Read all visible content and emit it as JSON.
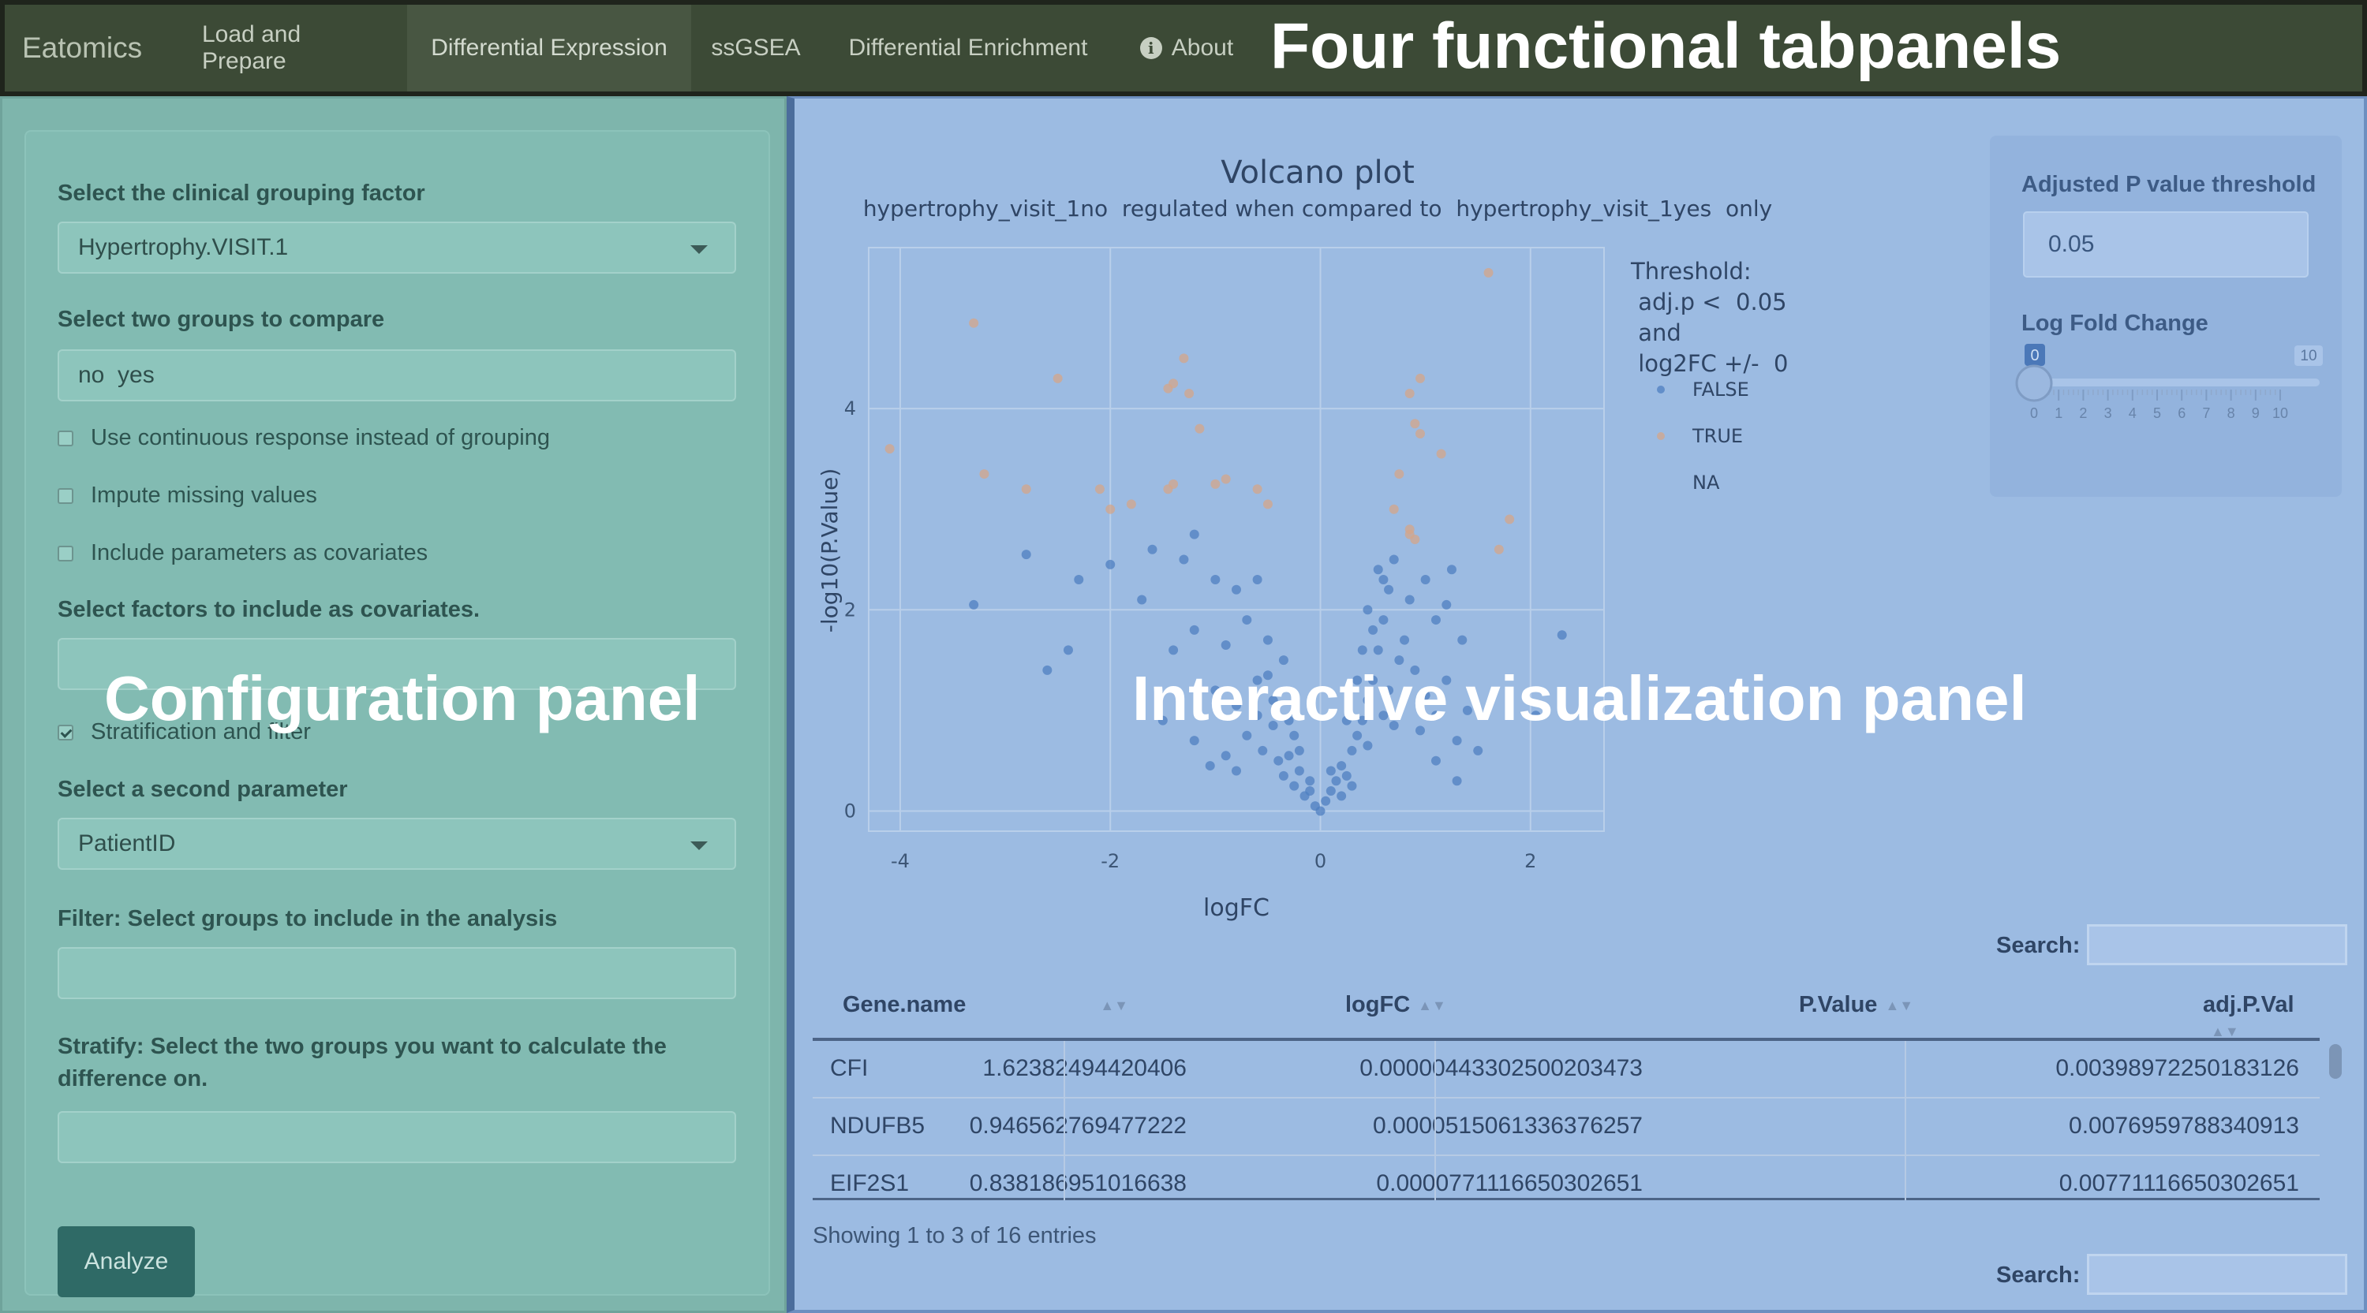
{
  "navbar": {
    "brand": "Eatomics",
    "tabs": [
      {
        "label": "Load and Prepare"
      },
      {
        "label": "Differential Expression"
      },
      {
        "label": "ssGSEA"
      },
      {
        "label": "Differential Enrichment"
      },
      {
        "label": "About"
      }
    ],
    "active_tab": "Differential Expression"
  },
  "annotations": {
    "tabpanels": "Four functional tabpanels",
    "config": "Configuration panel",
    "viz": "Interactive visualization panel"
  },
  "config": {
    "grouping_label": "Select the clinical grouping factor",
    "grouping_value": "Hypertrophy.VISIT.1",
    "groups_label": "Select two groups to compare",
    "groups_value": "no  yes",
    "cb_continuous": "Use continuous response instead of grouping",
    "cb_impute": "Impute missing values",
    "cb_covariates": "Include parameters as covariates",
    "covariates_label": "Select factors to include as covariates.",
    "covariates_value": "",
    "cb_stratification": "Stratification and filter",
    "second_param_label": "Select a second parameter",
    "second_param_value": "PatientID",
    "filter_label": "Filter: Select groups to include in the analysis",
    "filter_value": "",
    "stratify_label_1": "Stratify: Select the two groups you want to calculate the",
    "stratify_label_2": "difference on.",
    "stratify_value": "",
    "analyze_button": "Analyze",
    "checkbox_state": {
      "continuous": false,
      "impute": false,
      "covariates": false,
      "stratification": true
    }
  },
  "side": {
    "pval_label": "Adjusted P value threshold",
    "pval_value": "0.05",
    "lfc_label": "Log Fold Change",
    "slider_value": "0",
    "slider_max": "10",
    "slider_ticks": [
      "0",
      "1",
      "2",
      "3",
      "4",
      "5",
      "6",
      "7",
      "8",
      "9",
      "10"
    ]
  },
  "chart_data": {
    "type": "scatter",
    "title": "Volcano plot",
    "subtitle": "hypertrophy_visit_1no  regulated when compared to  hypertrophy_visit_1yes  only",
    "xlabel": "logFC",
    "ylabel": "-log10(P.Value)",
    "xlim": [
      -4.3,
      2.7
    ],
    "ylim": [
      -0.2,
      5.6
    ],
    "xticks": [
      "-4",
      "-2",
      "0",
      "2"
    ],
    "xtick_values": [
      -4,
      -2,
      0,
      2
    ],
    "yticks": [
      "0",
      "2",
      "4"
    ],
    "ytick_values": [
      0,
      2,
      4
    ],
    "legend": {
      "title": [
        "Threshold:",
        " adj.p <  0.05",
        " and",
        " log2FC +/-  0"
      ],
      "entries": [
        "FALSE",
        "TRUE",
        "NA"
      ],
      "placement": "right"
    },
    "colors": {
      "FALSE": "#4f7fc0",
      "TRUE": "#d4a68a",
      "NA": "#9cbbe2"
    },
    "series": [
      {
        "name": "TRUE",
        "points": [
          [
            -4.1,
            3.6
          ],
          [
            -3.3,
            4.85
          ],
          [
            -3.2,
            3.35
          ],
          [
            -2.8,
            3.2
          ],
          [
            -2.5,
            4.3
          ],
          [
            -2.1,
            3.2
          ],
          [
            -2.0,
            3.0
          ],
          [
            -1.8,
            3.05
          ],
          [
            -1.45,
            4.2
          ],
          [
            -1.4,
            4.25
          ],
          [
            -1.3,
            4.5
          ],
          [
            -1.25,
            4.15
          ],
          [
            -1.15,
            3.8
          ],
          [
            -1.45,
            3.2
          ],
          [
            -1.4,
            3.25
          ],
          [
            -1.0,
            3.25
          ],
          [
            -0.9,
            3.3
          ],
          [
            -0.6,
            3.2
          ],
          [
            -0.5,
            3.05
          ],
          [
            1.6,
            5.35
          ],
          [
            0.95,
            4.3
          ],
          [
            0.85,
            4.15
          ],
          [
            0.9,
            3.85
          ],
          [
            0.95,
            3.75
          ],
          [
            1.15,
            3.55
          ],
          [
            0.75,
            3.35
          ],
          [
            0.7,
            3.0
          ],
          [
            0.85,
            2.8
          ],
          [
            0.9,
            2.7
          ],
          [
            0.85,
            2.75
          ],
          [
            1.8,
            2.9
          ],
          [
            1.7,
            2.6
          ]
        ]
      },
      {
        "name": "FALSE",
        "points": [
          [
            -3.3,
            2.05
          ],
          [
            -2.6,
            1.4
          ],
          [
            -2.4,
            1.6
          ],
          [
            -2.3,
            2.3
          ],
          [
            -2.8,
            2.55
          ],
          [
            -2.0,
            2.45
          ],
          [
            -1.6,
            2.6
          ],
          [
            -1.3,
            2.5
          ],
          [
            -1.2,
            2.75
          ],
          [
            -1.0,
            2.3
          ],
          [
            -0.8,
            2.2
          ],
          [
            -0.6,
            2.3
          ],
          [
            -1.7,
            2.1
          ],
          [
            -1.4,
            1.6
          ],
          [
            -1.2,
            1.8
          ],
          [
            -0.9,
            1.65
          ],
          [
            -0.7,
            1.9
          ],
          [
            -0.5,
            1.7
          ],
          [
            -1.0,
            1.2
          ],
          [
            -0.8,
            1.05
          ],
          [
            -0.6,
            1.3
          ],
          [
            -0.45,
            1.1
          ],
          [
            -1.5,
            0.9
          ],
          [
            -1.2,
            0.7
          ],
          [
            -0.9,
            0.55
          ],
          [
            -0.7,
            0.75
          ],
          [
            -0.55,
            0.6
          ],
          [
            -0.4,
            0.5
          ],
          [
            -0.35,
            0.35
          ],
          [
            -0.3,
            0.55
          ],
          [
            -0.25,
            0.25
          ],
          [
            -0.2,
            0.4
          ],
          [
            -0.15,
            0.15
          ],
          [
            -0.1,
            0.2
          ],
          [
            -0.05,
            0.05
          ],
          [
            0.0,
            0.0
          ],
          [
            0.05,
            0.1
          ],
          [
            0.1,
            0.2
          ],
          [
            0.15,
            0.3
          ],
          [
            0.2,
            0.45
          ],
          [
            0.25,
            0.35
          ],
          [
            0.3,
            0.6
          ],
          [
            0.35,
            0.75
          ],
          [
            0.4,
            0.9
          ],
          [
            0.45,
            1.1
          ],
          [
            0.5,
            1.3
          ],
          [
            0.55,
            1.6
          ],
          [
            0.6,
            1.9
          ],
          [
            0.65,
            2.2
          ],
          [
            0.7,
            2.5
          ],
          [
            0.6,
            2.3
          ],
          [
            0.5,
            1.8
          ],
          [
            0.45,
            2.0
          ],
          [
            0.4,
            1.6
          ],
          [
            0.55,
            2.4
          ],
          [
            0.8,
            1.7
          ],
          [
            0.9,
            1.4
          ],
          [
            1.0,
            1.15
          ],
          [
            1.1,
            0.95
          ],
          [
            1.2,
            1.3
          ],
          [
            1.3,
            0.7
          ],
          [
            1.4,
            1.0
          ],
          [
            1.5,
            0.6
          ],
          [
            1.1,
            1.9
          ],
          [
            1.2,
            2.05
          ],
          [
            1.35,
            1.7
          ],
          [
            1.25,
            2.4
          ],
          [
            1.0,
            2.3
          ],
          [
            0.85,
            2.1
          ],
          [
            0.75,
            1.5
          ],
          [
            0.65,
            1.2
          ],
          [
            -0.25,
            0.75
          ],
          [
            -0.3,
            0.9
          ],
          [
            -0.45,
            0.85
          ],
          [
            -0.6,
            0.95
          ],
          [
            0.2,
            0.15
          ],
          [
            0.3,
            0.25
          ],
          [
            -0.1,
            0.3
          ],
          [
            0.1,
            0.4
          ],
          [
            0.35,
            1.3
          ],
          [
            0.25,
            0.9
          ],
          [
            -0.2,
            0.6
          ],
          [
            -0.35,
            1.5
          ],
          [
            -0.5,
            1.35
          ],
          [
            0.45,
            0.65
          ],
          [
            0.6,
            0.95
          ],
          [
            0.7,
            0.85
          ],
          [
            0.95,
            0.8
          ],
          [
            -0.8,
            0.4
          ],
          [
            -1.05,
            0.45
          ],
          [
            1.3,
            0.3
          ],
          [
            1.1,
            0.5
          ],
          [
            2.3,
            1.75
          ],
          [
            2.05,
            0.95
          ]
        ]
      }
    ]
  },
  "table": {
    "search_label": "Search:",
    "columns": [
      "Gene.name",
      "logFC",
      "P.Value",
      "adj.P.Val"
    ],
    "rows": [
      [
        "CFI",
        "1.62382494420406",
        "0.00000443302500203473",
        "0.00398972250183126"
      ],
      [
        "NDUFB5",
        "0.946562769477222",
        "0.0000515061336376257",
        "0.0076959788340913"
      ],
      [
        "EIF2S1",
        "0.838186951016638",
        "0.0000771116650302651",
        "0.00771116650302651"
      ]
    ],
    "info": "Showing 1 to 3 of 16 entries"
  }
}
